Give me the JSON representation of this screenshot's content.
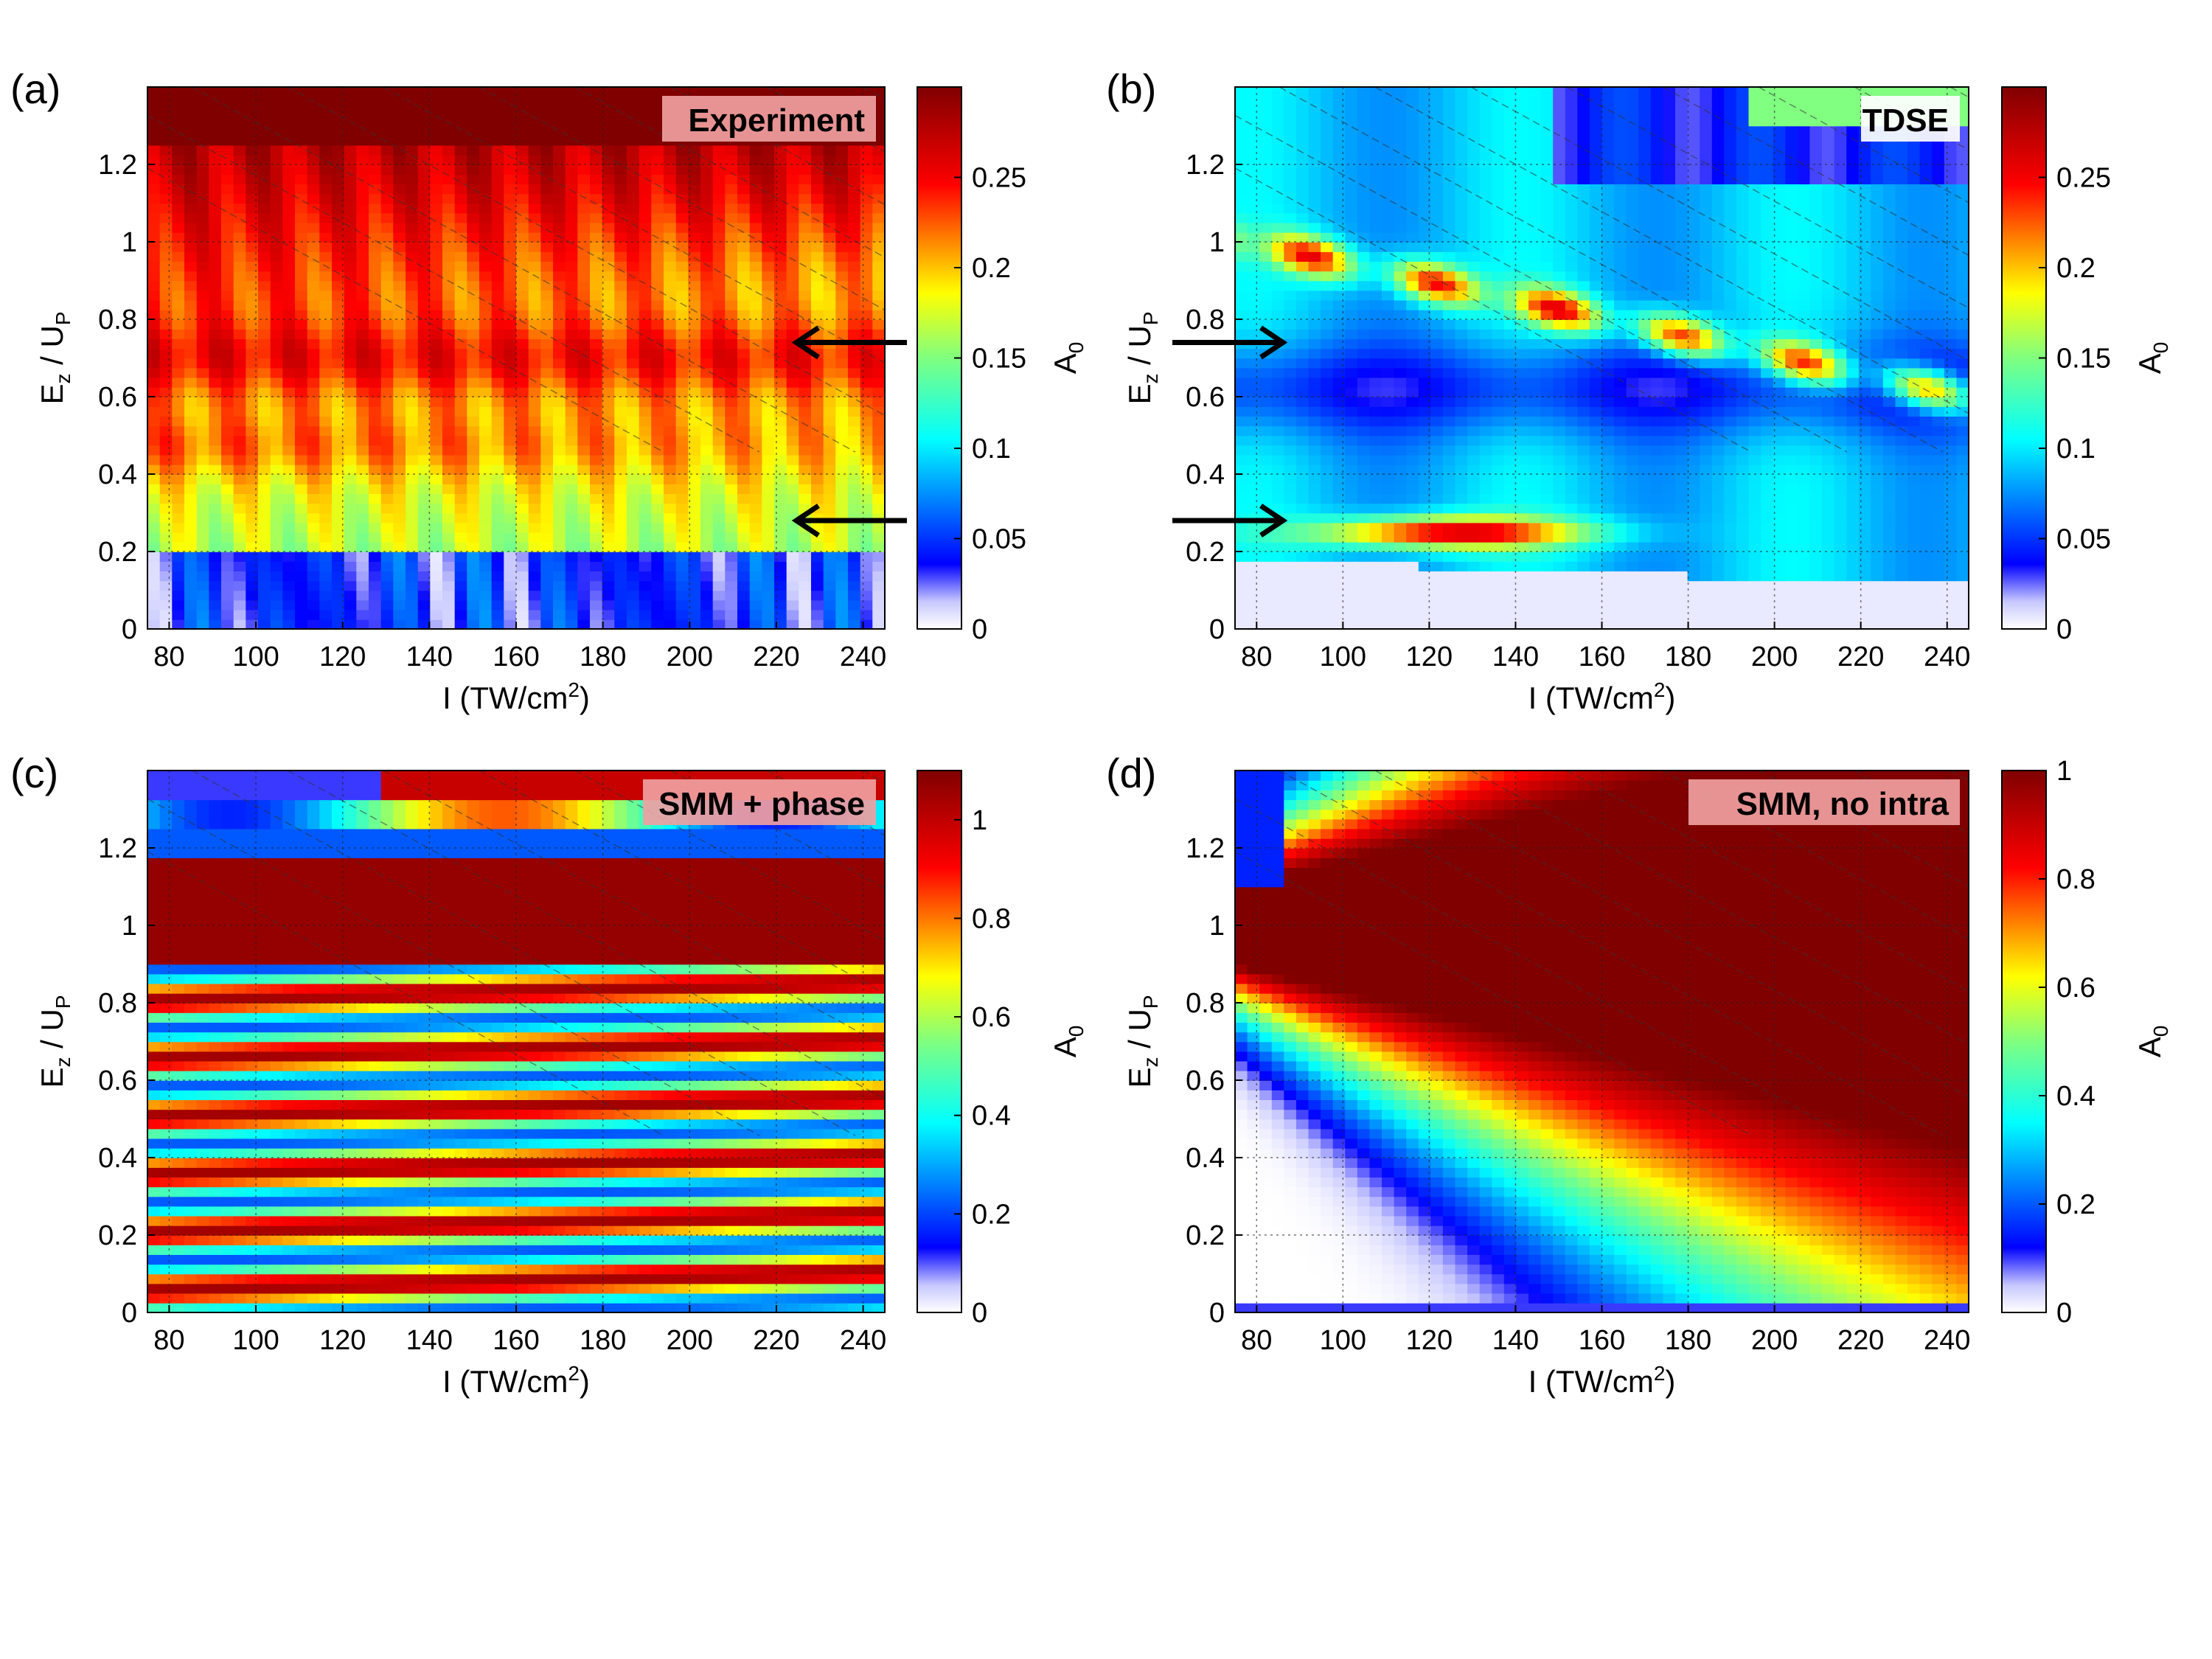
{
  "chart_data": [
    {
      "id": "a",
      "type": "heatmap",
      "panel_label": "(a)",
      "title": "Experiment",
      "title_bg": "#f0a0a0",
      "xlabel": "I (TW/cm",
      "xlabel_sup": "2",
      "xlabel_end": ")",
      "ylabel_main": "E",
      "ylabel_sub1": "z",
      "ylabel_mid": " / U",
      "ylabel_sub2": "P",
      "x_range": [
        75,
        245
      ],
      "y_range": [
        0,
        1.4
      ],
      "xticks": [
        80,
        100,
        120,
        140,
        160,
        180,
        200,
        220,
        240
      ],
      "yticks": [
        0,
        0.2,
        0.4,
        0.6,
        0.8,
        1,
        1.2
      ],
      "ytick_labels": [
        "0",
        "0.2",
        "0.4",
        "0.6",
        "0.8",
        "1",
        "1.2"
      ],
      "colorbar_label_main": "A",
      "colorbar_label_sub": "0",
      "cbar_range": [
        0,
        0.3
      ],
      "cbar_ticks": [
        0,
        0.05,
        0.1,
        0.15,
        0.2,
        0.25
      ],
      "cbar_tick_labels": [
        "0",
        "0.05",
        "0.1",
        "0.15",
        "0.2",
        "0.25"
      ],
      "arrows": [
        {
          "y": 0.74,
          "direction": "left",
          "side": "right"
        },
        {
          "y": 0.28,
          "direction": "left",
          "side": "right"
        }
      ]
    },
    {
      "id": "b",
      "type": "heatmap",
      "panel_label": "(b)",
      "title": "TDSE",
      "title_bg": "#ffffff",
      "xlabel": "I (TW/cm",
      "xlabel_sup": "2",
      "xlabel_end": ")",
      "ylabel_main": "E",
      "ylabel_sub1": "z",
      "ylabel_mid": " / U",
      "ylabel_sub2": "P",
      "x_range": [
        75,
        245
      ],
      "y_range": [
        0,
        1.4
      ],
      "xticks": [
        80,
        100,
        120,
        140,
        160,
        180,
        200,
        220,
        240
      ],
      "yticks": [
        0,
        0.2,
        0.4,
        0.6,
        0.8,
        1,
        1.2
      ],
      "ytick_labels": [
        "0",
        "0.2",
        "0.4",
        "0.6",
        "0.8",
        "1",
        "1.2"
      ],
      "colorbar_label_main": "A",
      "colorbar_label_sub": "0",
      "cbar_range": [
        0,
        0.3
      ],
      "cbar_ticks": [
        0,
        0.05,
        0.1,
        0.15,
        0.2,
        0.25
      ],
      "cbar_tick_labels": [
        "0",
        "0.05",
        "0.1",
        "0.15",
        "0.2",
        "0.25"
      ],
      "arrows": [
        {
          "y": 0.74,
          "direction": "right",
          "side": "left"
        },
        {
          "y": 0.28,
          "direction": "right",
          "side": "left"
        }
      ]
    },
    {
      "id": "c",
      "type": "heatmap",
      "panel_label": "(c)",
      "title": "SMM + phase",
      "title_bg": "#f0a0a0",
      "xlabel": "I (TW/cm",
      "xlabel_sup": "2",
      "xlabel_end": ")",
      "ylabel_main": "E",
      "ylabel_sub1": "z",
      "ylabel_mid": " / U",
      "ylabel_sub2": "P",
      "x_range": [
        75,
        245
      ],
      "y_range": [
        0,
        1.4
      ],
      "xticks": [
        80,
        100,
        120,
        140,
        160,
        180,
        200,
        220,
        240
      ],
      "yticks": [
        0,
        0.2,
        0.4,
        0.6,
        0.8,
        1,
        1.2
      ],
      "ytick_labels": [
        "0",
        "0.2",
        "0.4",
        "0.6",
        "0.8",
        "1",
        "1.2"
      ],
      "colorbar_label_main": "A",
      "colorbar_label_sub": "0",
      "cbar_range": [
        0,
        1.1
      ],
      "cbar_ticks": [
        0,
        0.2,
        0.4,
        0.6,
        0.8,
        1
      ],
      "cbar_tick_labels": [
        "0",
        "0.2",
        "0.4",
        "0.6",
        "0.8",
        "1"
      ],
      "arrows": []
    },
    {
      "id": "d",
      "type": "heatmap",
      "panel_label": "(d)",
      "title": "SMM, no intra",
      "title_bg": "#f0a0a0",
      "xlabel": "I (TW/cm",
      "xlabel_sup": "2",
      "xlabel_end": ")",
      "ylabel_main": "E",
      "ylabel_sub1": "z",
      "ylabel_mid": " / U",
      "ylabel_sub2": "P",
      "x_range": [
        75,
        245
      ],
      "y_range": [
        0,
        1.4
      ],
      "xticks": [
        80,
        100,
        120,
        140,
        160,
        180,
        200,
        220,
        240
      ],
      "yticks": [
        0,
        0.2,
        0.4,
        0.6,
        0.8,
        1,
        1.2
      ],
      "ytick_labels": [
        "0",
        "0.2",
        "0.4",
        "0.6",
        "0.8",
        "1",
        "1.2"
      ],
      "colorbar_label_main": "A",
      "colorbar_label_sub": "0",
      "cbar_range": [
        0,
        1
      ],
      "cbar_ticks": [
        0,
        0.2,
        0.4,
        0.6,
        0.8,
        1
      ],
      "cbar_tick_labels": [
        "0",
        "0.2",
        "0.4",
        "0.6",
        "0.8",
        "1"
      ],
      "arrows": []
    }
  ]
}
